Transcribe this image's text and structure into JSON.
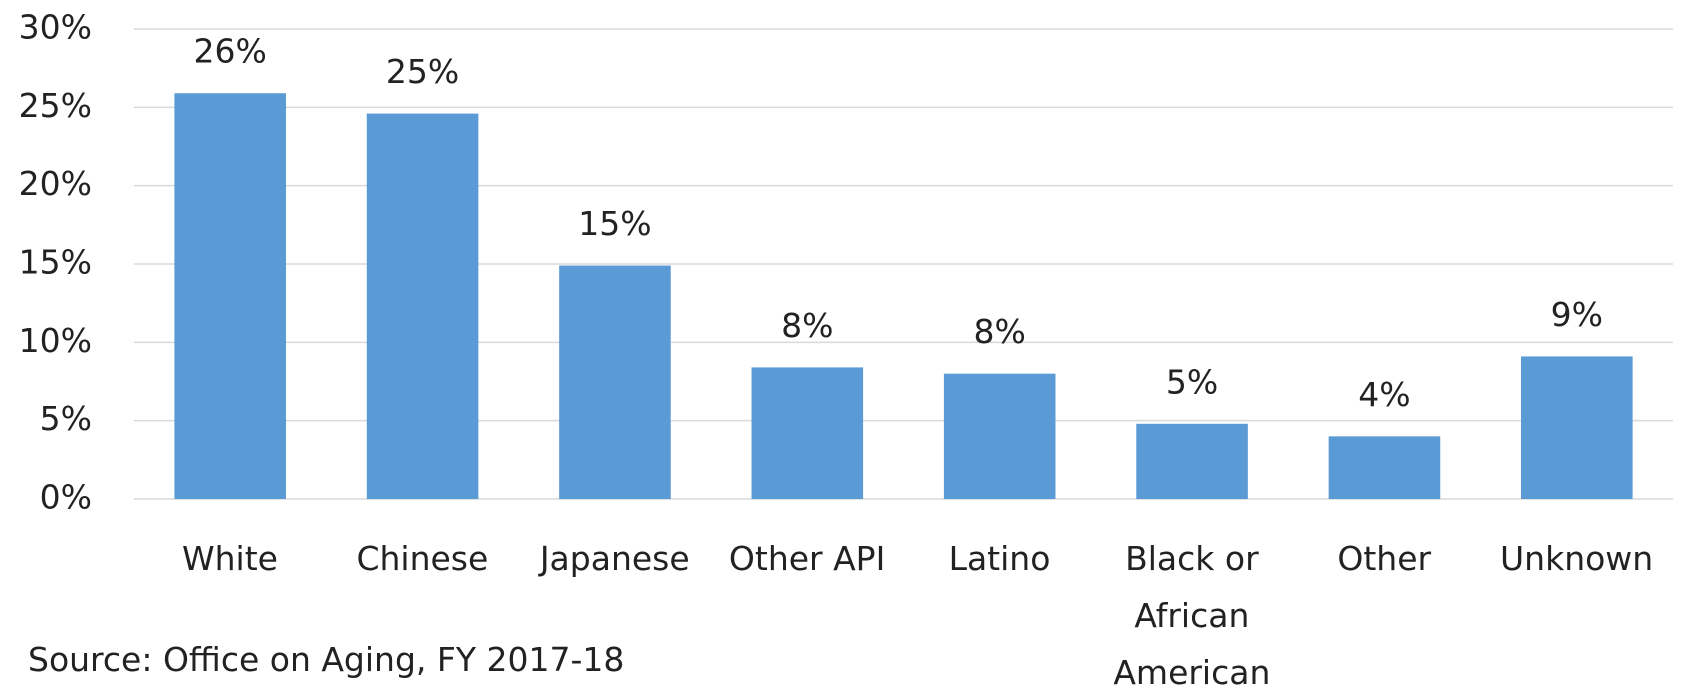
{
  "chart_data": {
    "type": "bar",
    "categories": [
      "White",
      "Chinese",
      "Japanese",
      "Other API",
      "Latino",
      "Black or African American",
      "Other",
      "Unknown"
    ],
    "values": [
      25.9,
      24.6,
      14.9,
      8.4,
      8.0,
      4.8,
      4.0,
      9.1
    ],
    "value_labels": [
      "26%",
      "25%",
      "15%",
      "8%",
      "8%",
      "5%",
      "4%",
      "9%"
    ],
    "color": "#5b9bd5",
    "ylim": [
      0,
      30
    ],
    "yticks": [
      {
        "value": 0,
        "label": "0%"
      },
      {
        "value": 5,
        "label": "5%"
      },
      {
        "value": 10,
        "label": "10%"
      },
      {
        "value": 15,
        "label": "15%"
      },
      {
        "value": 20,
        "label": "20%"
      },
      {
        "value": 25,
        "label": "25%"
      },
      {
        "value": 30,
        "label": "30%"
      }
    ],
    "grid": true,
    "source": "Source: Office on Aging, FY 2017-18"
  }
}
